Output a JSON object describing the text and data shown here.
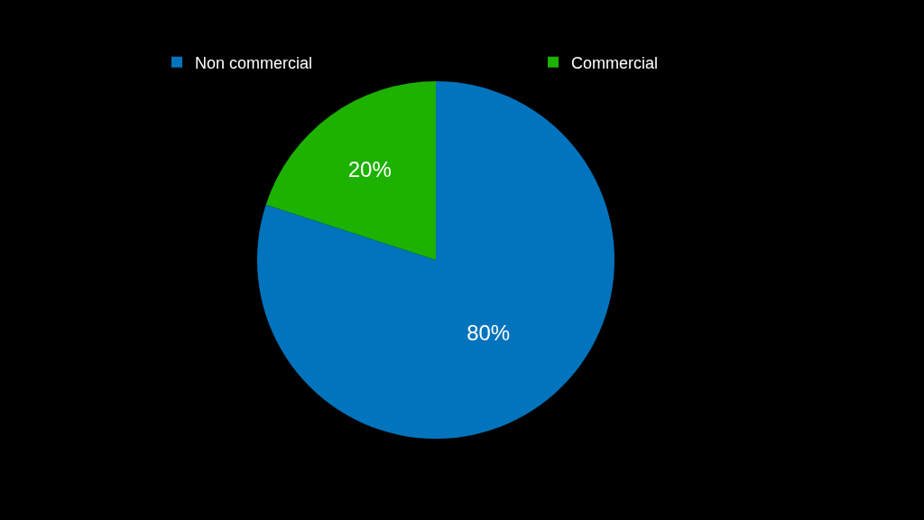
{
  "chart_data": {
    "type": "pie",
    "categories": [
      "Non commercial",
      "Commercial"
    ],
    "values": [
      80,
      20
    ],
    "colors": [
      "#0274bd",
      "#1db100"
    ],
    "value_labels": [
      "80%",
      "20%"
    ],
    "legend": "top"
  }
}
